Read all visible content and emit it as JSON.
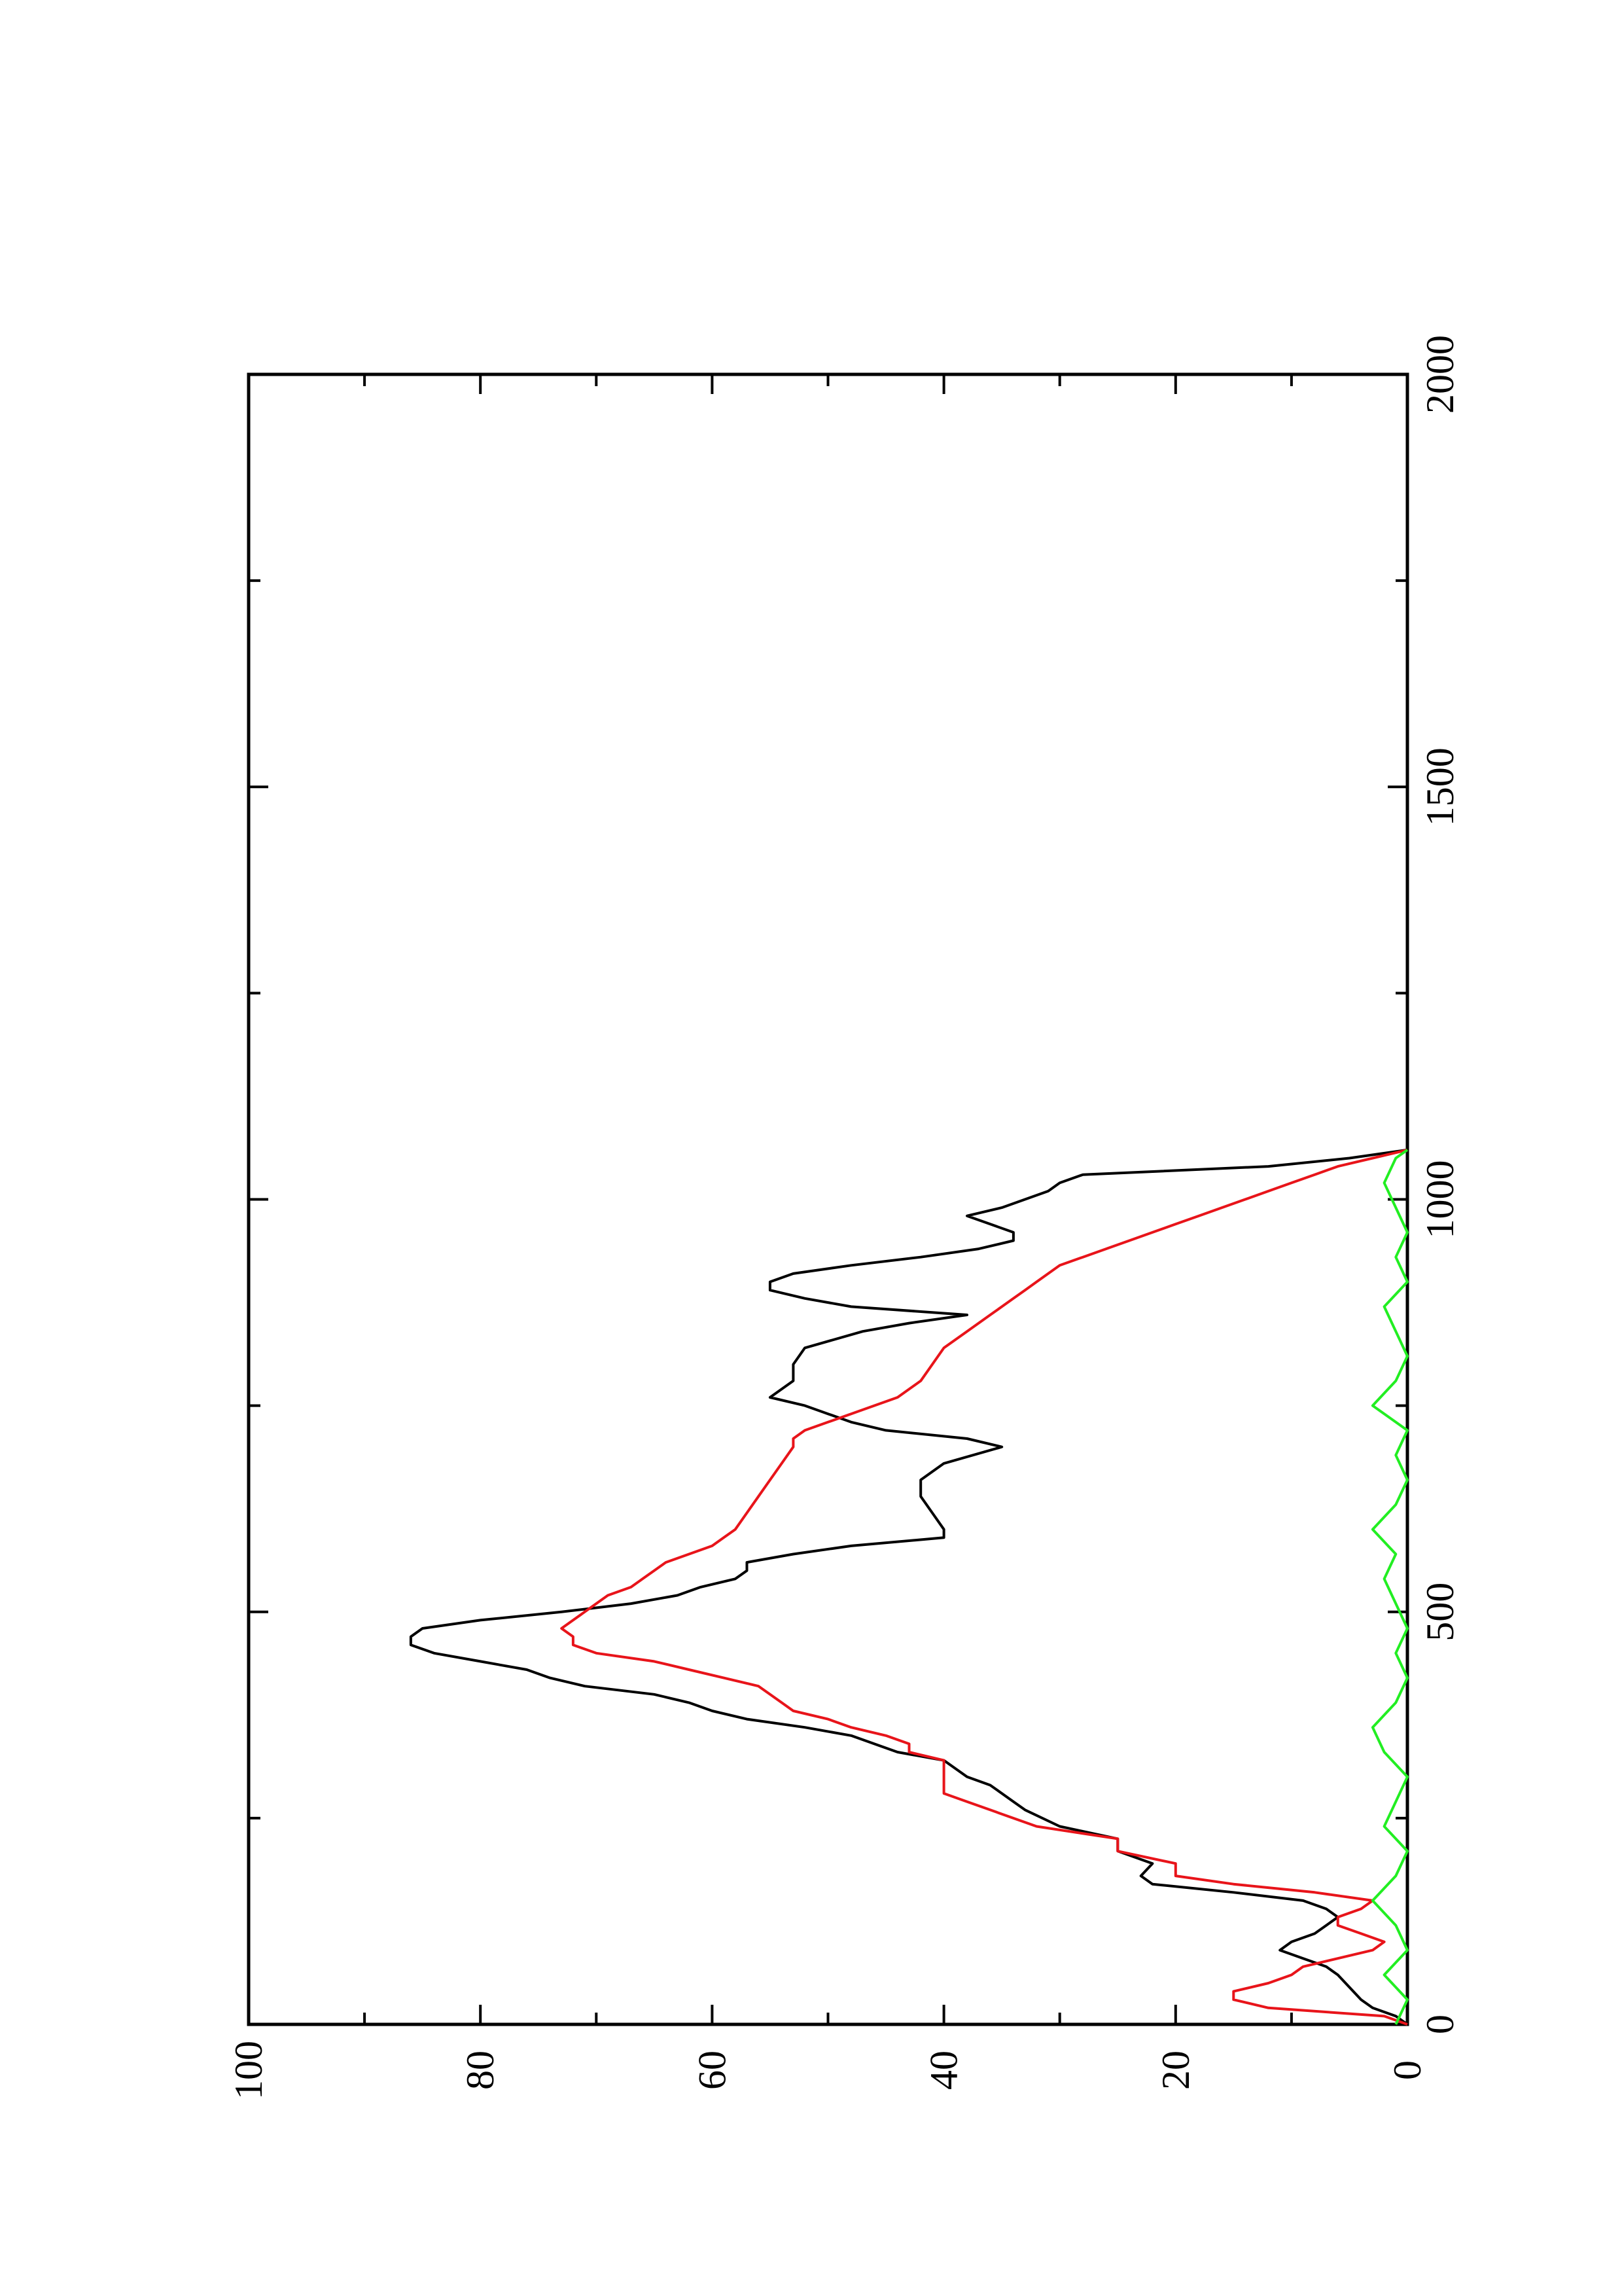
{
  "chart_data": {
    "type": "line",
    "title": "",
    "xlabel": "",
    "ylabel": "",
    "orientation": "rotated 90° counter-clockwise (x axis runs bottom-to-top along the right edge, y axis runs right-to-left along the bottom edge)",
    "xlim": [
      0,
      2000
    ],
    "ylim": [
      0,
      100
    ],
    "x_ticks": [
      "0",
      "500",
      "1000",
      "1500",
      "2000"
    ],
    "y_ticks": [
      "0",
      "20",
      "40",
      "60",
      "80",
      "100"
    ],
    "grid": false,
    "legend": "none",
    "series": [
      {
        "color": "#000000",
        "points": [
          [
            0,
            0
          ],
          [
            10,
            1
          ],
          [
            20,
            3
          ],
          [
            30,
            4
          ],
          [
            45,
            5
          ],
          [
            60,
            6
          ],
          [
            70,
            7
          ],
          [
            80,
            9
          ],
          [
            90,
            11
          ],
          [
            100,
            10
          ],
          [
            110,
            8
          ],
          [
            120,
            7
          ],
          [
            130,
            6
          ],
          [
            140,
            7
          ],
          [
            150,
            9
          ],
          [
            160,
            15
          ],
          [
            170,
            22
          ],
          [
            180,
            23
          ],
          [
            195,
            22
          ],
          [
            210,
            25
          ],
          [
            225,
            25
          ],
          [
            240,
            30
          ],
          [
            260,
            33
          ],
          [
            270,
            34
          ],
          [
            280,
            35
          ],
          [
            290,
            36
          ],
          [
            300,
            38
          ],
          [
            320,
            40
          ],
          [
            330,
            44
          ],
          [
            340,
            46
          ],
          [
            350,
            48
          ],
          [
            360,
            52
          ],
          [
            370,
            57
          ],
          [
            380,
            60
          ],
          [
            390,
            62
          ],
          [
            400,
            65
          ],
          [
            410,
            71
          ],
          [
            420,
            74
          ],
          [
            430,
            76
          ],
          [
            440,
            80
          ],
          [
            450,
            84
          ],
          [
            460,
            86
          ],
          [
            470,
            86
          ],
          [
            480,
            85
          ],
          [
            490,
            80
          ],
          [
            500,
            73
          ],
          [
            510,
            67
          ],
          [
            520,
            63
          ],
          [
            530,
            61
          ],
          [
            540,
            58
          ],
          [
            550,
            57
          ],
          [
            560,
            57
          ],
          [
            570,
            53
          ],
          [
            580,
            48
          ],
          [
            590,
            40
          ],
          [
            600,
            40
          ],
          [
            620,
            41
          ],
          [
            640,
            42
          ],
          [
            660,
            42
          ],
          [
            680,
            40
          ],
          [
            700,
            35
          ],
          [
            710,
            38
          ],
          [
            720,
            45
          ],
          [
            730,
            48
          ],
          [
            740,
            50
          ],
          [
            750,
            52
          ],
          [
            760,
            55
          ],
          [
            780,
            53
          ],
          [
            800,
            53
          ],
          [
            820,
            52
          ],
          [
            840,
            47
          ],
          [
            850,
            43
          ],
          [
            860,
            38
          ],
          [
            870,
            48
          ],
          [
            880,
            52
          ],
          [
            890,
            55
          ],
          [
            900,
            55
          ],
          [
            910,
            53
          ],
          [
            920,
            48
          ],
          [
            930,
            42
          ],
          [
            940,
            37
          ],
          [
            950,
            34
          ],
          [
            960,
            34
          ],
          [
            970,
            36
          ],
          [
            980,
            38
          ],
          [
            990,
            35
          ],
          [
            1000,
            33
          ],
          [
            1010,
            31
          ],
          [
            1020,
            30
          ],
          [
            1030,
            28
          ],
          [
            1040,
            12
          ],
          [
            1050,
            5
          ],
          [
            1060,
            0
          ]
        ]
      },
      {
        "color": "#e8141a",
        "points": [
          [
            0,
            0
          ],
          [
            10,
            2
          ],
          [
            20,
            12
          ],
          [
            30,
            15
          ],
          [
            40,
            15
          ],
          [
            50,
            12
          ],
          [
            60,
            10
          ],
          [
            70,
            9
          ],
          [
            80,
            6
          ],
          [
            90,
            3
          ],
          [
            100,
            2
          ],
          [
            110,
            4
          ],
          [
            120,
            6
          ],
          [
            130,
            6
          ],
          [
            140,
            4
          ],
          [
            150,
            3
          ],
          [
            160,
            8
          ],
          [
            170,
            15
          ],
          [
            180,
            20
          ],
          [
            195,
            20
          ],
          [
            210,
            25
          ],
          [
            225,
            25
          ],
          [
            240,
            32
          ],
          [
            260,
            36
          ],
          [
            270,
            38
          ],
          [
            280,
            40
          ],
          [
            290,
            40
          ],
          [
            300,
            40
          ],
          [
            320,
            40
          ],
          [
            330,
            43
          ],
          [
            340,
            43
          ],
          [
            350,
            45
          ],
          [
            360,
            48
          ],
          [
            370,
            50
          ],
          [
            380,
            53
          ],
          [
            390,
            54
          ],
          [
            400,
            55
          ],
          [
            410,
            56
          ],
          [
            420,
            59
          ],
          [
            430,
            62
          ],
          [
            440,
            65
          ],
          [
            450,
            70
          ],
          [
            460,
            72
          ],
          [
            470,
            72
          ],
          [
            480,
            73
          ],
          [
            490,
            72
          ],
          [
            500,
            71
          ],
          [
            510,
            70
          ],
          [
            520,
            69
          ],
          [
            530,
            67
          ],
          [
            540,
            66
          ],
          [
            550,
            65
          ],
          [
            560,
            64
          ],
          [
            570,
            62
          ],
          [
            580,
            60
          ],
          [
            590,
            59
          ],
          [
            600,
            58
          ],
          [
            620,
            57
          ],
          [
            640,
            56
          ],
          [
            660,
            55
          ],
          [
            680,
            54
          ],
          [
            700,
            53
          ],
          [
            710,
            53
          ],
          [
            720,
            52
          ],
          [
            730,
            50
          ],
          [
            740,
            48
          ],
          [
            750,
            46
          ],
          [
            760,
            44
          ],
          [
            780,
            42
          ],
          [
            800,
            41
          ],
          [
            820,
            40
          ],
          [
            840,
            38
          ],
          [
            850,
            37
          ],
          [
            860,
            36
          ],
          [
            870,
            35
          ],
          [
            880,
            34
          ],
          [
            890,
            33
          ],
          [
            900,
            32
          ],
          [
            910,
            31
          ],
          [
            920,
            30
          ],
          [
            930,
            28
          ],
          [
            940,
            26
          ],
          [
            950,
            24
          ],
          [
            960,
            22
          ],
          [
            970,
            20
          ],
          [
            980,
            18
          ],
          [
            990,
            16
          ],
          [
            1000,
            14
          ],
          [
            1010,
            12
          ],
          [
            1020,
            10
          ],
          [
            1030,
            8
          ],
          [
            1040,
            6
          ],
          [
            1050,
            3
          ],
          [
            1060,
            0
          ]
        ]
      },
      {
        "color": "#22ee22",
        "points": [
          [
            0,
            1
          ],
          [
            30,
            0
          ],
          [
            60,
            2
          ],
          [
            90,
            0
          ],
          [
            120,
            1
          ],
          [
            150,
            3
          ],
          [
            180,
            1
          ],
          [
            210,
            0
          ],
          [
            240,
            2
          ],
          [
            270,
            1
          ],
          [
            300,
            0
          ],
          [
            330,
            2
          ],
          [
            360,
            3
          ],
          [
            390,
            1
          ],
          [
            420,
            0
          ],
          [
            450,
            1
          ],
          [
            480,
            0
          ],
          [
            510,
            1
          ],
          [
            540,
            2
          ],
          [
            570,
            1
          ],
          [
            600,
            3
          ],
          [
            630,
            1
          ],
          [
            660,
            0
          ],
          [
            690,
            1
          ],
          [
            720,
            0
          ],
          [
            750,
            3
          ],
          [
            780,
            1
          ],
          [
            810,
            0
          ],
          [
            840,
            1
          ],
          [
            870,
            2
          ],
          [
            900,
            0
          ],
          [
            930,
            1
          ],
          [
            960,
            0
          ],
          [
            990,
            1
          ],
          [
            1020,
            2
          ],
          [
            1050,
            1
          ],
          [
            1060,
            0
          ]
        ]
      }
    ]
  }
}
